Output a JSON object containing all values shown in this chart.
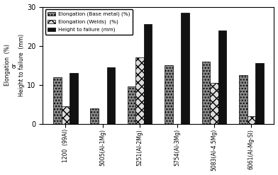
{
  "categories": [
    "1200  (99Al)",
    "5005(Al-1Mg)",
    "5251(Al-2Mg)",
    "5754(Al-3Mg)",
    "5083(Al-4.5Mg)",
    "6061(Al-Mg-SI)"
  ],
  "elongation_base": [
    12,
    4,
    9.5,
    15,
    16,
    12.5
  ],
  "elongation_weld": [
    4.5,
    0,
    17,
    0,
    10.5,
    2
  ],
  "height_to_failure": [
    13,
    14.5,
    25.5,
    28.5,
    24,
    15.5
  ],
  "legend_labels": [
    "Elongation (Base metal) (%)",
    "Elongation (Welds)  (%)",
    "Height to failure (mm)"
  ],
  "ylabel": "Elongation  (%)\nor\nHeight to failure  (mm)",
  "ylim": [
    0,
    30
  ],
  "yticks": [
    0,
    10,
    20,
    30
  ],
  "bar_width": 0.22,
  "color_base": "#888888",
  "color_weld": "#dddddd",
  "color_height": "#111111",
  "hatch_base": "....",
  "hatch_weld": "xxx",
  "hatch_height": "",
  "bg_color": "#f0f0f0"
}
